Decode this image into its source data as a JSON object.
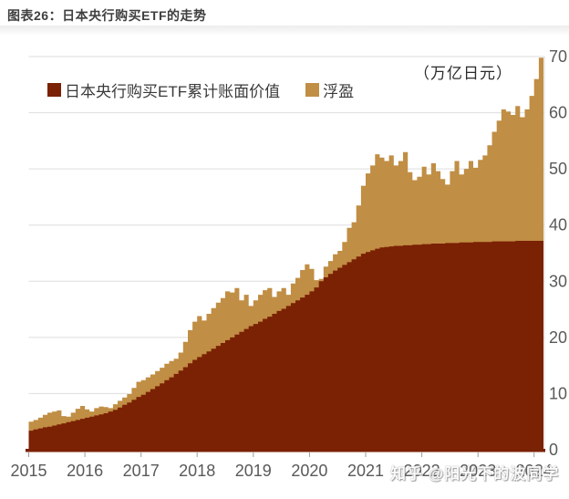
{
  "figure": {
    "title": "图表26：日本央行购买ETF的走势",
    "unit_label": "（万亿日元）",
    "watermark": "知乎 @阳光下的波同学"
  },
  "legend": [
    {
      "label": "日本央行购买ETF累计账面价值",
      "color": "#7B2104"
    },
    {
      "label": "浮盈",
      "color": "#C08E44"
    }
  ],
  "chart_data": {
    "type": "area",
    "stacked": true,
    "title": "图表26：日本央行购买ETF的走势",
    "unit": "万亿日元",
    "xlabel": "",
    "ylabel": "万亿日元",
    "ylim": [
      0,
      70
    ],
    "y_ticks": [
      0,
      10,
      20,
      30,
      40,
      50,
      60,
      70
    ],
    "grid": "horizontal",
    "legend_position": "top-left",
    "x_tick_labels": [
      "2015",
      "2016",
      "2017",
      "2018",
      "2019",
      "2020",
      "2021",
      "2022",
      "2023",
      "2024"
    ],
    "x_frequency": "monthly",
    "x_range": [
      "2015-01",
      "2024-02"
    ],
    "series": [
      {
        "name": "日本央行购买ETF累计账面价值",
        "color": "#7B2104",
        "values": [
          3.4,
          3.6,
          3.8,
          4.0,
          4.1,
          4.3,
          4.5,
          4.7,
          4.9,
          5.1,
          5.3,
          5.5,
          5.7,
          5.9,
          6.1,
          6.3,
          6.5,
          6.8,
          7.1,
          7.5,
          8.0,
          8.4,
          8.9,
          9.4,
          9.8,
          10.3,
          10.8,
          11.3,
          11.8,
          12.4,
          12.9,
          13.5,
          14.1,
          14.7,
          15.4,
          16.0,
          16.5,
          17.0,
          17.5,
          18.0,
          18.5,
          19.0,
          19.5,
          20.0,
          20.5,
          21.0,
          21.5,
          22.0,
          22.4,
          22.8,
          23.3,
          23.7,
          24.2,
          24.7,
          25.1,
          25.6,
          26.1,
          26.6,
          27.1,
          27.6,
          28.2,
          28.9,
          30.0,
          30.7,
          31.3,
          31.9,
          32.4,
          32.9,
          33.4,
          33.9,
          34.4,
          34.9,
          35.2,
          35.5,
          35.8,
          36.0,
          36.1,
          36.2,
          36.3,
          36.3,
          36.4,
          36.4,
          36.5,
          36.5,
          36.6,
          36.6,
          36.7,
          36.7,
          36.7,
          36.8,
          36.8,
          36.8,
          36.9,
          36.9,
          36.9,
          37.0,
          37.0,
          37.0,
          37.0,
          37.1,
          37.1,
          37.1,
          37.1,
          37.1,
          37.2,
          37.2,
          37.2,
          37.2,
          37.2,
          37.2
        ]
      },
      {
        "name": "浮盈",
        "color": "#C08E44",
        "values": [
          1.6,
          1.7,
          1.9,
          2.2,
          2.5,
          2.5,
          2.5,
          1.3,
          1.0,
          1.5,
          2.0,
          2.3,
          1.5,
          0.9,
          1.3,
          1.4,
          1.1,
          0.6,
          1.0,
          1.2,
          1.3,
          1.5,
          2.1,
          2.7,
          2.6,
          2.6,
          2.6,
          2.7,
          2.8,
          2.9,
          2.9,
          2.7,
          3.2,
          4.5,
          5.9,
          6.8,
          7.3,
          6.0,
          6.7,
          7.2,
          7.7,
          8.0,
          8.7,
          8.0,
          8.3,
          5.6,
          6.1,
          3.6,
          4.2,
          4.8,
          5.1,
          5.1,
          3.0,
          3.5,
          3.7,
          2.0,
          3.5,
          4.0,
          4.9,
          5.4,
          4.0,
          1.3,
          0.4,
          1.9,
          2.3,
          2.9,
          3.0,
          4.1,
          6.1,
          6.6,
          9.1,
          12.1,
          14.0,
          15.1,
          16.8,
          16.0,
          15.3,
          16.2,
          14.3,
          15.1,
          16.6,
          13.0,
          11.5,
          12.1,
          13.8,
          12.4,
          14.3,
          12.9,
          11.5,
          10.4,
          12.8,
          14.6,
          12.1,
          13.1,
          14.5,
          13.2,
          14.6,
          15.4,
          17.2,
          19.5,
          21.5,
          23.5,
          23.1,
          22.5,
          24.0,
          22.0,
          23.4,
          25.8,
          28.8,
          32.6
        ]
      }
    ],
    "axis_colors": {
      "axis_line": "#7B2104",
      "tick_text": "#595959",
      "gridline": "#dedede"
    }
  }
}
